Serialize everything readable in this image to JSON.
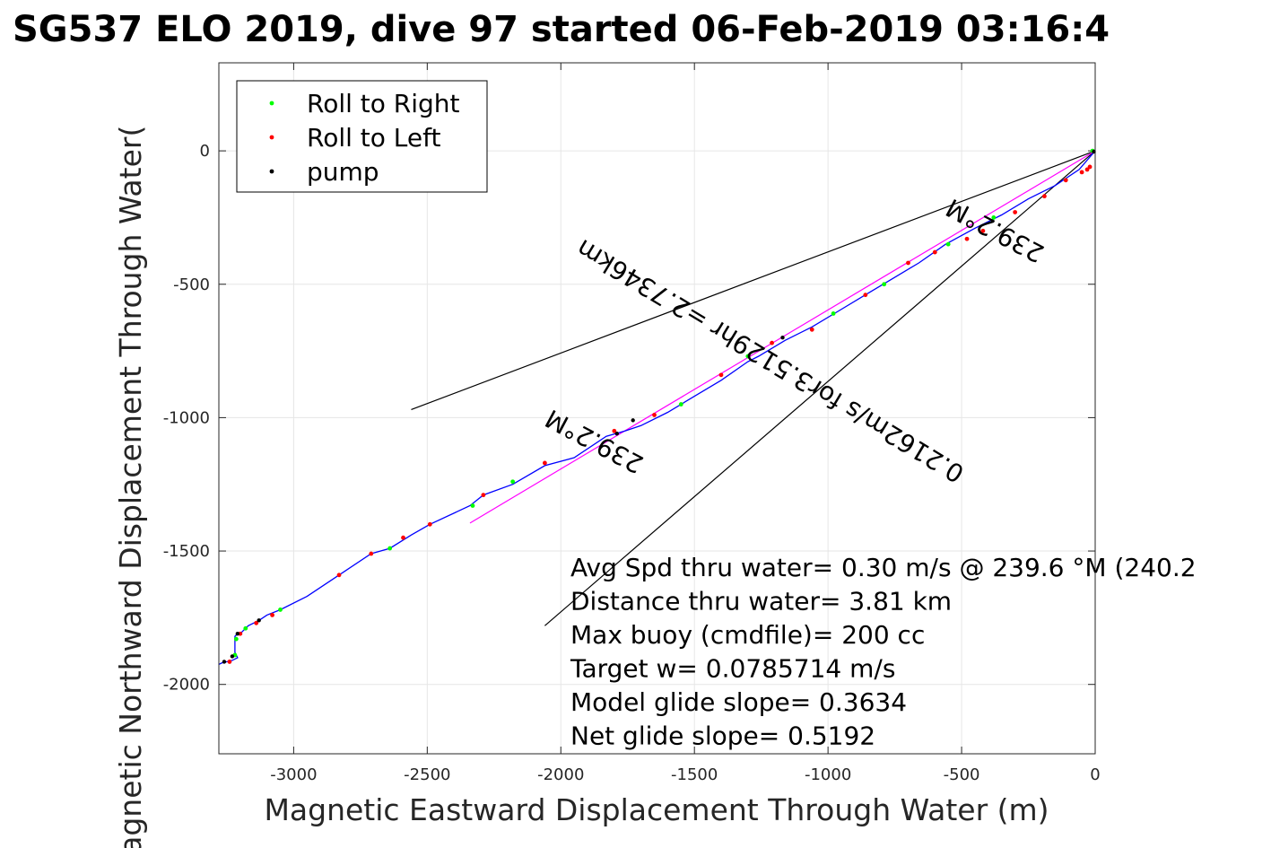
{
  "chart_data": {
    "type": "scatter",
    "title": "SG537 ELO 2019, dive 97 started 06-Feb-2019 03:16:4",
    "xlabel": "Magnetic Eastward Displacement Through Water (m)",
    "ylabel": "Magnetic Northward Displacement Through Water(",
    "xlim": [
      -3280,
      0
    ],
    "ylim": [
      -2260,
      330
    ],
    "xticks": [
      -3000,
      -2500,
      -2000,
      -1500,
      -1000,
      -500,
      0
    ],
    "xtick_labels": [
      "-3000",
      "-2500",
      "-2000",
      "-1500",
      "-1000",
      "-500",
      "0"
    ],
    "yticks": [
      0,
      -500,
      -1000,
      -1500,
      -2000
    ],
    "ytick_labels": [
      "0",
      "-500",
      "-1000",
      "-1500",
      "-2000"
    ],
    "grid": true,
    "legend_position": "top-left",
    "legend": [
      {
        "label": "Roll to Right",
        "color": "#00ff00",
        "marker": "dot"
      },
      {
        "label": "Roll to Left",
        "color": "#ff0000",
        "marker": "dot"
      },
      {
        "label": "pump",
        "color": "#000000",
        "marker": "dot"
      }
    ],
    "track": {
      "color": "#0000ff",
      "x": [
        0,
        -60,
        -150,
        -250,
        -350,
        -450,
        -560,
        -660,
        -760,
        -860,
        -960,
        -1060,
        -1160,
        -1260,
        -1300,
        -1400,
        -1500,
        -1600,
        -1700,
        -1760,
        -1830,
        -1950,
        -2060,
        -2180,
        -2290,
        -2340,
        -2490,
        -2560,
        -2640,
        -2710,
        -2830,
        -2950,
        -3050,
        -3100,
        -3130,
        -3170,
        -3190,
        -3200,
        -3210,
        -3220,
        -3220,
        -3210,
        -3230,
        -3270,
        -3280
      ],
      "y": [
        0,
        -70,
        -130,
        -180,
        -240,
        -290,
        -350,
        -420,
        -480,
        -540,
        -600,
        -660,
        -710,
        -770,
        -790,
        -860,
        -920,
        -980,
        -1030,
        -1050,
        -1070,
        -1150,
        -1180,
        -1250,
        -1290,
        -1330,
        -1400,
        -1440,
        -1490,
        -1510,
        -1590,
        -1670,
        -1720,
        -1740,
        -1760,
        -1780,
        -1800,
        -1810,
        -1810,
        -1820,
        -1880,
        -1900,
        -1910,
        -1920,
        -1925
      ]
    },
    "roll_right": {
      "x": [
        -10,
        -380,
        -550,
        -790,
        -980,
        -1300,
        -1550,
        -2180,
        -2330,
        -2640,
        -3050,
        -3180,
        -3215,
        -3220
      ],
      "y": [
        0,
        -250,
        -350,
        -500,
        -610,
        -770,
        -950,
        -1240,
        -1330,
        -1490,
        -1720,
        -1790,
        -1830,
        -1890
      ]
    },
    "roll_left": {
      "x": [
        -20,
        -30,
        -50,
        -110,
        -190,
        -300,
        -420,
        -480,
        -600,
        -700,
        -860,
        -1060,
        -1210,
        -1400,
        -1650,
        -1800,
        -2060,
        -2290,
        -2490,
        -2590,
        -2710,
        -2830,
        -3080,
        -3140,
        -3200,
        -3240
      ],
      "y": [
        -60,
        -70,
        -80,
        -110,
        -170,
        -230,
        -300,
        -330,
        -380,
        -420,
        -540,
        -670,
        -720,
        -840,
        -990,
        -1050,
        -1170,
        -1290,
        -1400,
        -1450,
        -1510,
        -1590,
        -1740,
        -1770,
        -1810,
        -1915
      ]
    },
    "pump": {
      "x": [
        -5,
        -1170,
        -1730,
        -1790,
        -3130,
        -3210,
        -3230,
        -3260
      ],
      "y": [
        -3,
        -700,
        -1010,
        -1060,
        -1760,
        -1810,
        -1895,
        -1915
      ]
    },
    "lines": [
      {
        "color": "#000000",
        "x": [
          0,
          -2560
        ],
        "y": [
          0,
          -970
        ]
      },
      {
        "color": "#000000",
        "x": [
          0,
          -2060
        ],
        "y": [
          0,
          -1780
        ]
      },
      {
        "color": "#ff00ff",
        "x": [
          0,
          -2340
        ],
        "y": [
          0,
          -1395
        ]
      }
    ],
    "annotations": [
      {
        "text": "239.2°M",
        "x": -360,
        "y": -270,
        "rotate": 208
      },
      {
        "text": "0.2162m/s for3.5129hr =2.7346km",
        "x": -1200,
        "y": -760,
        "rotate": 211
      },
      {
        "text": "239.2°M",
        "x": -1860,
        "y": -1060,
        "rotate": 208
      }
    ],
    "info_text": [
      "Avg Spd thru water=  0.30 m/s @ 239.6 °M (240.2",
      "Distance thru water=  3.81 km",
      "Max buoy (cmdfile)= 200 cc",
      "Target w= 0.0785714 m/s",
      "Model glide slope= 0.3634",
      "Net glide slope= 0.5192"
    ]
  }
}
